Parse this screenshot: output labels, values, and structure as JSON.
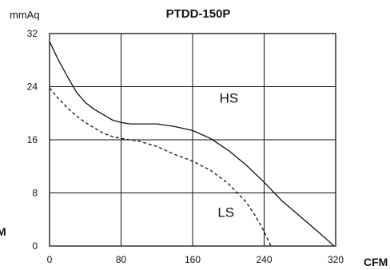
{
  "chart_data": {
    "type": "line",
    "title": "PTDD-150P",
    "ylabel": "mmAq",
    "xlabel": "CFM",
    "left_edge_label": "M",
    "xlim": [
      0,
      320
    ],
    "ylim": [
      0,
      32
    ],
    "x_ticks": [
      "0",
      "80",
      "160",
      "240",
      "320"
    ],
    "y_ticks": [
      "0",
      "8",
      "16",
      "24",
      "32"
    ],
    "grid": true,
    "series": [
      {
        "name": "HS",
        "style": "solid",
        "points": [
          [
            0,
            30.8
          ],
          [
            10,
            28
          ],
          [
            20,
            25.5
          ],
          [
            30,
            23.2
          ],
          [
            40,
            21.6
          ],
          [
            50,
            20.6
          ],
          [
            60,
            19.8
          ],
          [
            70,
            19
          ],
          [
            80,
            18.6
          ],
          [
            90,
            18.4
          ],
          [
            120,
            18.4
          ],
          [
            140,
            18
          ],
          [
            160,
            17.4
          ],
          [
            180,
            16.2
          ],
          [
            200,
            14.4
          ],
          [
            220,
            12.2
          ],
          [
            240,
            9.6
          ],
          [
            260,
            6.8
          ],
          [
            280,
            4.5
          ],
          [
            300,
            2.2
          ],
          [
            315,
            0.4
          ],
          [
            318,
            0
          ]
        ]
      },
      {
        "name": "LS",
        "style": "dashed",
        "points": [
          [
            0,
            23.8
          ],
          [
            10,
            22.2
          ],
          [
            20,
            20.8
          ],
          [
            30,
            19.6
          ],
          [
            40,
            18.6
          ],
          [
            50,
            17.8
          ],
          [
            60,
            17
          ],
          [
            70,
            16.5
          ],
          [
            80,
            16.2
          ],
          [
            100,
            15.8
          ],
          [
            120,
            15
          ],
          [
            140,
            13.8
          ],
          [
            160,
            12.8
          ],
          [
            180,
            11.4
          ],
          [
            200,
            9.4
          ],
          [
            220,
            6.6
          ],
          [
            230,
            4.6
          ],
          [
            240,
            2.2
          ],
          [
            246,
            0.4
          ],
          [
            248,
            0
          ]
        ]
      }
    ]
  }
}
